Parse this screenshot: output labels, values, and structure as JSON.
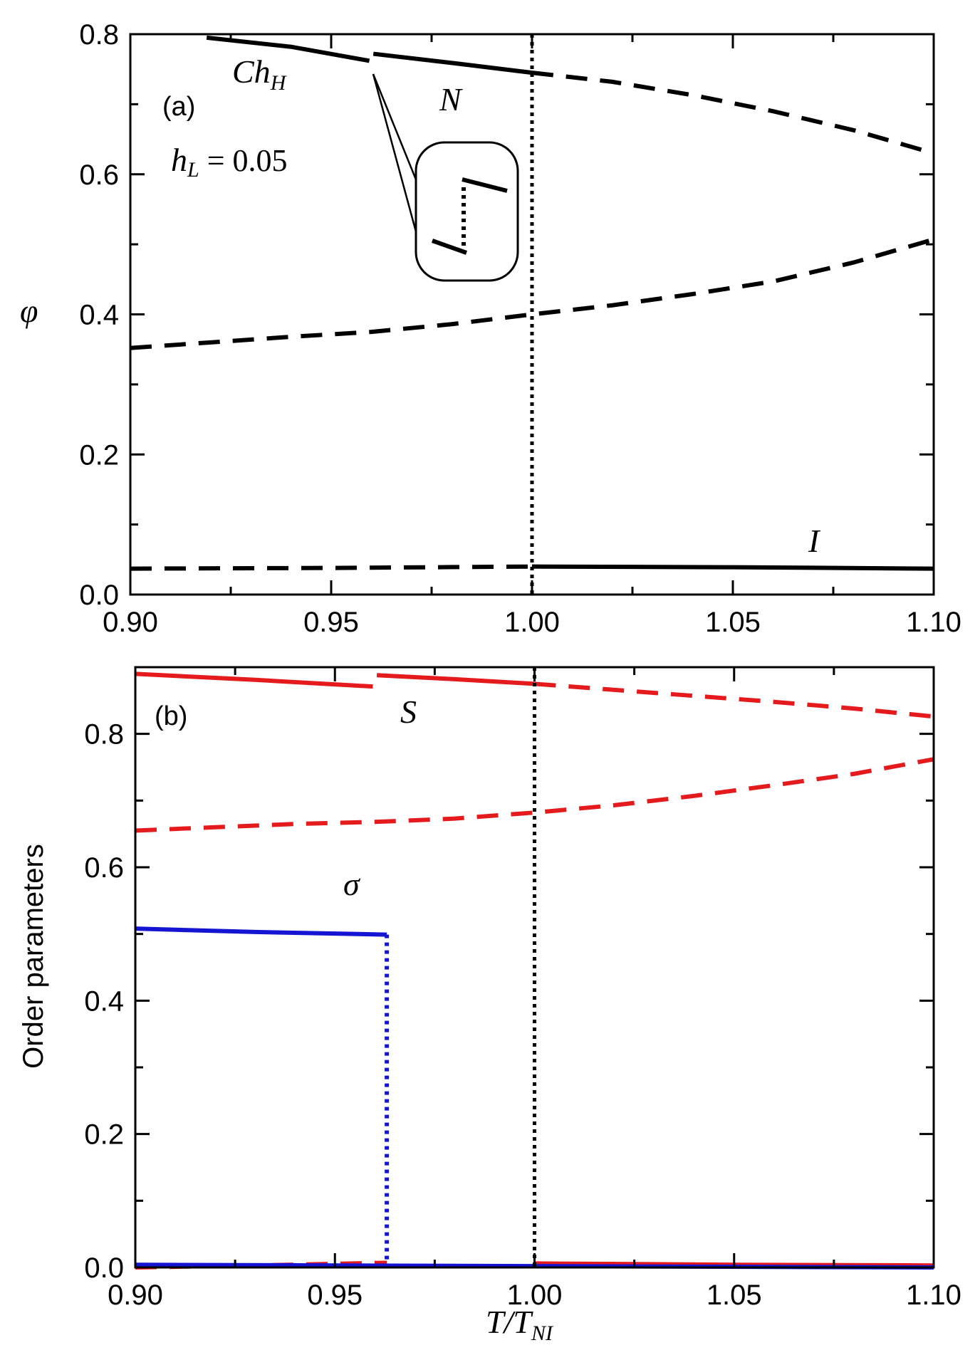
{
  "chart_data": [
    {
      "type": "line",
      "panel_label": "(a)",
      "ylabel": "φ",
      "xlim": [
        0.9,
        1.1
      ],
      "ylim": [
        0.0,
        0.8
      ],
      "xticks": [
        "0.90",
        "0.95",
        "1.00",
        "1.05",
        "1.10"
      ],
      "yticks": [
        "0.0",
        "0.2",
        "0.4",
        "0.6",
        "0.8"
      ],
      "parameter_label": {
        "main": "h",
        "sub": "L",
        "rest": " = 0.05"
      },
      "annotations": [
        {
          "text": "Ch",
          "sub": "H"
        },
        {
          "text": "N"
        },
        {
          "text": "I"
        }
      ],
      "transition_line_x": 1.0,
      "series": [
        {
          "style": "solid",
          "color": "#000000",
          "x": [
            0.919,
            0.94,
            0.9595
          ],
          "y": [
            0.795,
            0.782,
            0.762
          ]
        },
        {
          "style": "solid",
          "color": "#000000",
          "x": [
            0.9605,
            0.98,
            1.0
          ],
          "y": [
            0.772,
            0.759,
            0.745
          ]
        },
        {
          "style": "dashed",
          "color": "#000000",
          "x": [
            1.0,
            1.02,
            1.04,
            1.06,
            1.08,
            1.1
          ],
          "y": [
            0.745,
            0.732,
            0.713,
            0.69,
            0.663,
            0.63
          ]
        },
        {
          "style": "dashed",
          "color": "#000000",
          "x": [
            0.9,
            0.92,
            0.94,
            0.96,
            0.98,
            1.0,
            1.02,
            1.04,
            1.06,
            1.08,
            1.1
          ],
          "y": [
            0.352,
            0.36,
            0.368,
            0.375,
            0.386,
            0.4,
            0.413,
            0.429,
            0.447,
            0.474,
            0.507
          ]
        },
        {
          "style": "dashed",
          "color": "#000000",
          "x": [
            0.9,
            0.95,
            1.0
          ],
          "y": [
            0.037,
            0.038,
            0.04
          ]
        },
        {
          "style": "solid",
          "color": "#000000",
          "x": [
            1.0,
            1.05,
            1.1
          ],
          "y": [
            0.04,
            0.039,
            0.037
          ]
        }
      ]
    },
    {
      "type": "line",
      "panel_label": "(b)",
      "ylabel": "Order parameters",
      "xlabel": {
        "main": "T/T",
        "sub": "NI"
      },
      "xlim": [
        0.9,
        1.1
      ],
      "ylim": [
        0.0,
        0.9
      ],
      "xticks": [
        "0.90",
        "0.95",
        "1.00",
        "1.05",
        "1.10"
      ],
      "yticks": [
        "0.0",
        "0.2",
        "0.4",
        "0.6",
        "0.8"
      ],
      "annotations": [
        {
          "text": "S"
        },
        {
          "text": "σ"
        }
      ],
      "transition_line_x": 1.0,
      "series": [
        {
          "style": "solid",
          "color": "#e41a1c",
          "x": [
            0.9,
            0.93,
            0.9595
          ],
          "y": [
            0.89,
            0.881,
            0.871
          ]
        },
        {
          "style": "solid",
          "color": "#e41a1c",
          "x": [
            0.9605,
            0.98,
            1.0
          ],
          "y": [
            0.888,
            0.882,
            0.875
          ]
        },
        {
          "style": "dashed",
          "color": "#e41a1c",
          "x": [
            1.0,
            1.02,
            1.04,
            1.06,
            1.08,
            1.1
          ],
          "y": [
            0.875,
            0.866,
            0.857,
            0.848,
            0.838,
            0.826
          ]
        },
        {
          "style": "dashed",
          "color": "#e41a1c",
          "x": [
            0.9,
            0.92,
            0.94,
            0.96,
            0.98,
            1.0,
            1.02,
            1.04,
            1.06,
            1.08,
            1.1
          ],
          "y": [
            0.655,
            0.66,
            0.665,
            0.668,
            0.673,
            0.682,
            0.693,
            0.707,
            0.723,
            0.74,
            0.762
          ]
        },
        {
          "style": "dashed",
          "color": "#e41a1c",
          "x": [
            0.9,
            0.93,
            0.963
          ],
          "y": [
            0.0,
            0.003,
            0.007
          ]
        },
        {
          "style": "solid",
          "color": "#e41a1c",
          "x": [
            1.0,
            1.05,
            1.1
          ],
          "y": [
            0.006,
            0.004,
            0.003
          ]
        },
        {
          "style": "solid",
          "color": "#1414d2",
          "x": [
            0.9,
            0.93,
            0.963
          ],
          "y": [
            0.508,
            0.503,
            0.499
          ]
        },
        {
          "style": "dotted",
          "color": "#1414d2",
          "x": [
            0.963,
            0.963
          ],
          "y": [
            0.499,
            0.003
          ]
        },
        {
          "style": "solid",
          "color": "#1414d2",
          "x": [
            0.9,
            1.0,
            1.1
          ],
          "y": [
            0.004,
            0.002,
            0.0
          ]
        }
      ]
    }
  ]
}
